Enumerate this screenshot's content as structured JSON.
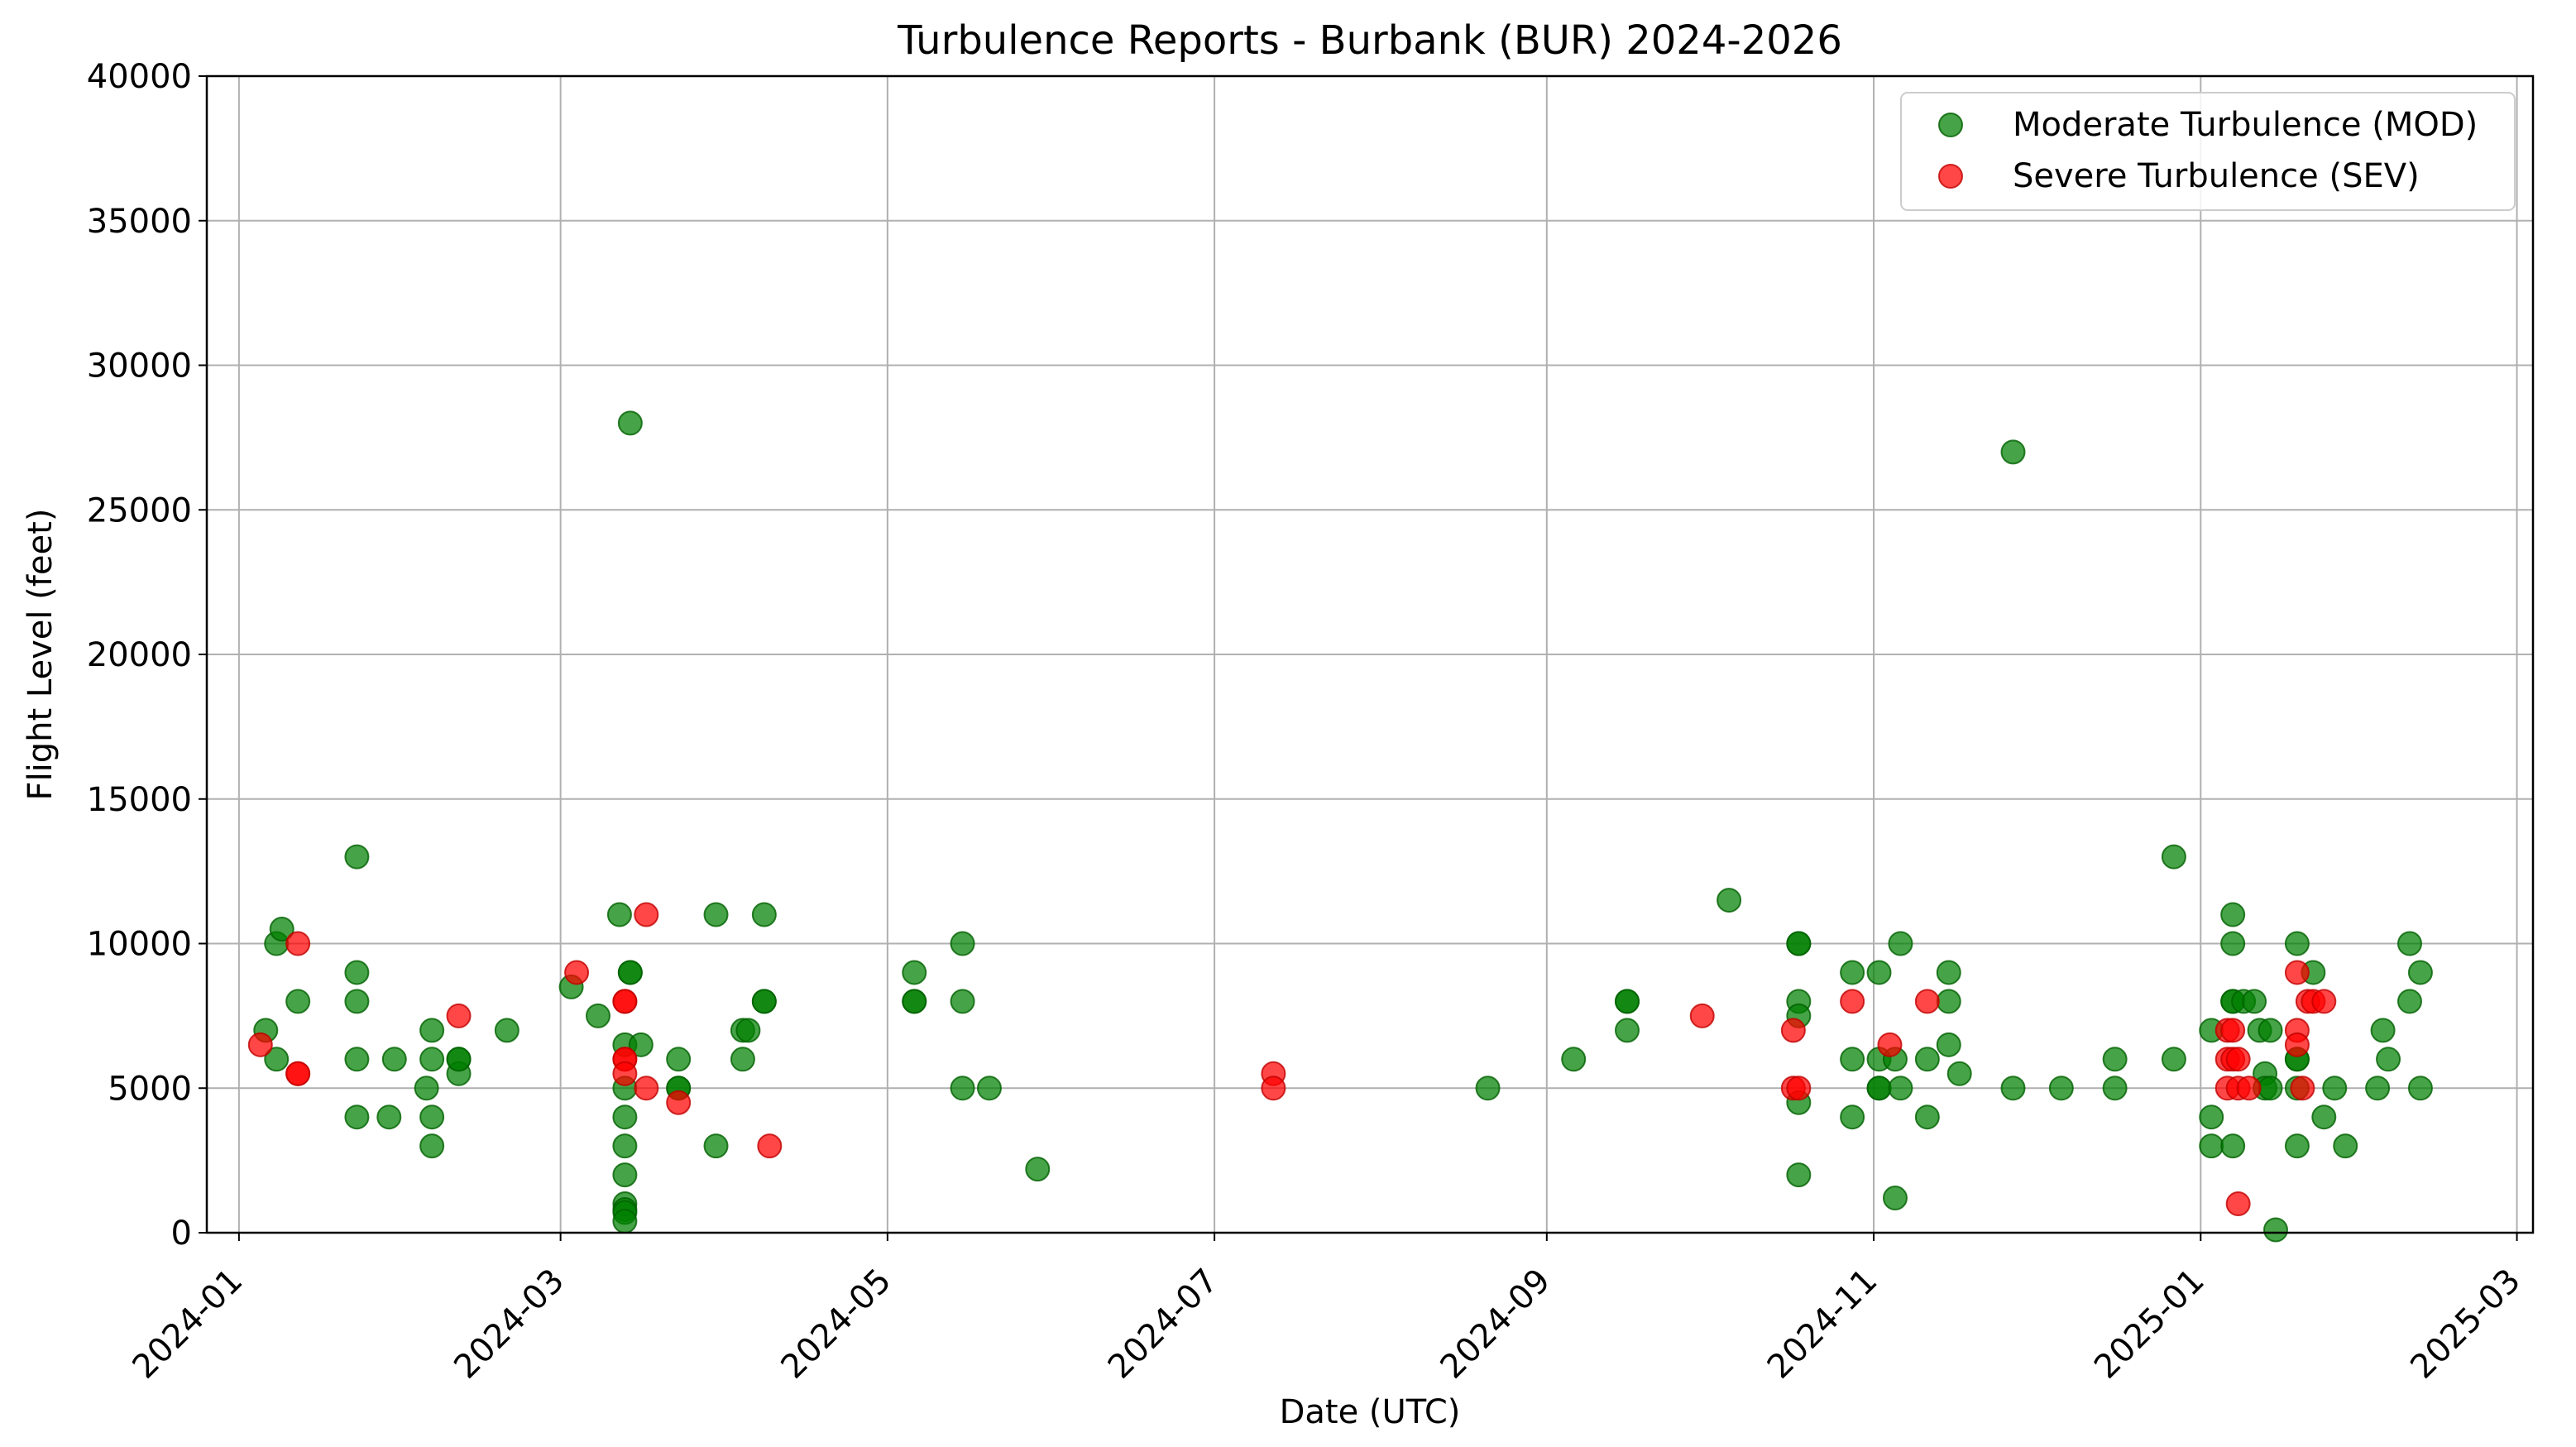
{
  "chart_data": {
    "type": "scatter",
    "title": "Turbulence Reports - Burbank (BUR) 2024-2026",
    "xlabel": "Date (UTC)",
    "ylabel": "Flight Level (feet)",
    "xlim": [
      "2023-12-26",
      "2025-03-04"
    ],
    "ylim": [
      0,
      40000
    ],
    "x_ticks": [
      "2024-01",
      "2024-03",
      "2024-05",
      "2024-07",
      "2024-09",
      "2024-11",
      "2025-01",
      "2025-03"
    ],
    "y_ticks": [
      "0",
      "5000",
      "10000",
      "15000",
      "20000",
      "25000",
      "30000",
      "35000",
      "40000"
    ],
    "grid": true,
    "legend_position": "top-right",
    "colors": {
      "MOD": "#008000",
      "SEV": "#ff0000"
    },
    "series": [
      {
        "name": "Moderate Turbulence (MOD)",
        "points": [
          [
            "2024-01-06",
            7000
          ],
          [
            "2024-01-08",
            10000
          ],
          [
            "2024-01-09",
            10500
          ],
          [
            "2024-01-08",
            6000
          ],
          [
            "2024-01-12",
            8000
          ],
          [
            "2024-01-23",
            13000
          ],
          [
            "2024-01-23",
            9000
          ],
          [
            "2024-01-23",
            8000
          ],
          [
            "2024-01-23",
            6000
          ],
          [
            "2024-01-23",
            4000
          ],
          [
            "2024-01-29",
            4000
          ],
          [
            "2024-01-30",
            6000
          ],
          [
            "2024-02-05",
            5000
          ],
          [
            "2024-02-06",
            7000
          ],
          [
            "2024-02-06",
            6000
          ],
          [
            "2024-02-06",
            4000
          ],
          [
            "2024-02-06",
            3000
          ],
          [
            "2024-02-11",
            6000
          ],
          [
            "2024-02-11",
            5500
          ],
          [
            "2024-02-11",
            6000
          ],
          [
            "2024-02-20",
            7000
          ],
          [
            "2024-03-03",
            8500
          ],
          [
            "2024-03-08",
            7500
          ],
          [
            "2024-03-12",
            11000
          ],
          [
            "2024-03-13",
            4000
          ],
          [
            "2024-03-14",
            28000
          ],
          [
            "2024-03-13",
            6500
          ],
          [
            "2024-03-14",
            9000
          ],
          [
            "2024-03-14",
            9000
          ],
          [
            "2024-03-16",
            6500
          ],
          [
            "2024-03-13",
            5000
          ],
          [
            "2024-03-13",
            3000
          ],
          [
            "2024-03-13",
            2000
          ],
          [
            "2024-03-13",
            1000
          ],
          [
            "2024-03-13",
            800
          ],
          [
            "2024-03-13",
            700
          ],
          [
            "2024-03-13",
            400
          ],
          [
            "2024-03-23",
            6000
          ],
          [
            "2024-03-23",
            5000
          ],
          [
            "2024-03-23",
            5000
          ],
          [
            "2024-03-30",
            11000
          ],
          [
            "2024-03-30",
            3000
          ],
          [
            "2024-04-04",
            7000
          ],
          [
            "2024-04-04",
            6000
          ],
          [
            "2024-04-05",
            7000
          ],
          [
            "2024-04-08",
            11000
          ],
          [
            "2024-04-08",
            8000
          ],
          [
            "2024-04-08",
            8000
          ],
          [
            "2024-05-06",
            9000
          ],
          [
            "2024-05-06",
            8000
          ],
          [
            "2024-05-06",
            8000
          ],
          [
            "2024-05-15",
            10000
          ],
          [
            "2024-05-15",
            8000
          ],
          [
            "2024-05-15",
            5000
          ],
          [
            "2024-05-20",
            5000
          ],
          [
            "2024-05-29",
            2200
          ],
          [
            "2024-08-21",
            5000
          ],
          [
            "2024-09-06",
            6000
          ],
          [
            "2024-09-16",
            8000
          ],
          [
            "2024-09-16",
            8000
          ],
          [
            "2024-09-16",
            7000
          ],
          [
            "2024-10-05",
            11500
          ],
          [
            "2024-10-18",
            10000
          ],
          [
            "2024-10-18",
            10000
          ],
          [
            "2024-10-18",
            8000
          ],
          [
            "2024-10-18",
            7500
          ],
          [
            "2024-10-18",
            4500
          ],
          [
            "2024-10-18",
            2000
          ],
          [
            "2024-10-28",
            9000
          ],
          [
            "2024-10-28",
            6000
          ],
          [
            "2024-10-28",
            4000
          ],
          [
            "2024-11-02",
            9000
          ],
          [
            "2024-11-02",
            6000
          ],
          [
            "2024-11-02",
            5000
          ],
          [
            "2024-11-02",
            5000
          ],
          [
            "2024-11-05",
            6000
          ],
          [
            "2024-11-06",
            10000
          ],
          [
            "2024-11-06",
            5000
          ],
          [
            "2024-11-05",
            1200
          ],
          [
            "2024-11-11",
            6000
          ],
          [
            "2024-11-11",
            4000
          ],
          [
            "2024-11-15",
            9000
          ],
          [
            "2024-11-15",
            8000
          ],
          [
            "2024-11-15",
            6500
          ],
          [
            "2024-11-17",
            5500
          ],
          [
            "2024-11-27",
            27000
          ],
          [
            "2024-11-27",
            5000
          ],
          [
            "2024-12-06",
            5000
          ],
          [
            "2024-12-16",
            6000
          ],
          [
            "2024-12-16",
            5000
          ],
          [
            "2024-12-27",
            13000
          ],
          [
            "2024-12-27",
            6000
          ],
          [
            "2025-01-03",
            7000
          ],
          [
            "2025-01-03",
            4000
          ],
          [
            "2025-01-03",
            3000
          ],
          [
            "2025-01-07",
            11000
          ],
          [
            "2025-01-07",
            10000
          ],
          [
            "2025-01-07",
            8000
          ],
          [
            "2025-01-07",
            8000
          ],
          [
            "2025-01-07",
            3000
          ],
          [
            "2025-01-09",
            8000
          ],
          [
            "2025-01-11",
            8000
          ],
          [
            "2025-01-12",
            7000
          ],
          [
            "2025-01-13",
            5500
          ],
          [
            "2025-01-13",
            5000
          ],
          [
            "2025-01-14",
            7000
          ],
          [
            "2025-01-14",
            5000
          ],
          [
            "2025-01-15",
            100
          ],
          [
            "2025-01-19",
            10000
          ],
          [
            "2025-01-19",
            6000
          ],
          [
            "2025-01-19",
            6000
          ],
          [
            "2025-01-19",
            5000
          ],
          [
            "2025-01-19",
            3000
          ],
          [
            "2025-01-22",
            9000
          ],
          [
            "2025-01-24",
            4000
          ],
          [
            "2025-01-26",
            5000
          ],
          [
            "2025-01-28",
            3000
          ],
          [
            "2025-02-03",
            5000
          ],
          [
            "2025-02-04",
            7000
          ],
          [
            "2025-02-05",
            6000
          ],
          [
            "2025-02-09",
            10000
          ],
          [
            "2025-02-09",
            8000
          ],
          [
            "2025-02-11",
            9000
          ],
          [
            "2025-02-11",
            5000
          ]
        ]
      },
      {
        "name": "Severe Turbulence (SEV)",
        "points": [
          [
            "2024-01-05",
            6500
          ],
          [
            "2024-01-12",
            10000
          ],
          [
            "2024-01-12",
            5500
          ],
          [
            "2024-01-12",
            5500
          ],
          [
            "2024-02-11",
            7500
          ],
          [
            "2024-03-04",
            9000
          ],
          [
            "2024-03-13",
            8000
          ],
          [
            "2024-03-13",
            8000
          ],
          [
            "2024-03-13",
            6000
          ],
          [
            "2024-03-13",
            6000
          ],
          [
            "2024-03-13",
            5500
          ],
          [
            "2024-03-17",
            11000
          ],
          [
            "2024-03-17",
            5000
          ],
          [
            "2024-03-23",
            4500
          ],
          [
            "2024-04-09",
            3000
          ],
          [
            "2024-07-12",
            5500
          ],
          [
            "2024-07-12",
            5000
          ],
          [
            "2024-09-30",
            7500
          ],
          [
            "2024-10-17",
            7000
          ],
          [
            "2024-10-17",
            5000
          ],
          [
            "2024-10-18",
            5000
          ],
          [
            "2024-10-28",
            8000
          ],
          [
            "2024-11-04",
            6500
          ],
          [
            "2024-11-11",
            8000
          ],
          [
            "2025-01-06",
            7000
          ],
          [
            "2025-01-06",
            6000
          ],
          [
            "2025-01-06",
            5000
          ],
          [
            "2025-01-07",
            7000
          ],
          [
            "2025-01-07",
            6000
          ],
          [
            "2025-01-08",
            6000
          ],
          [
            "2025-01-08",
            5000
          ],
          [
            "2025-01-08",
            1000
          ],
          [
            "2025-01-10",
            5000
          ],
          [
            "2025-01-19",
            9000
          ],
          [
            "2025-01-19",
            7000
          ],
          [
            "2025-01-19",
            6500
          ],
          [
            "2025-01-20",
            5000
          ],
          [
            "2025-01-21",
            8000
          ],
          [
            "2025-01-22",
            8000
          ],
          [
            "2025-01-24",
            8000
          ]
        ]
      }
    ]
  }
}
